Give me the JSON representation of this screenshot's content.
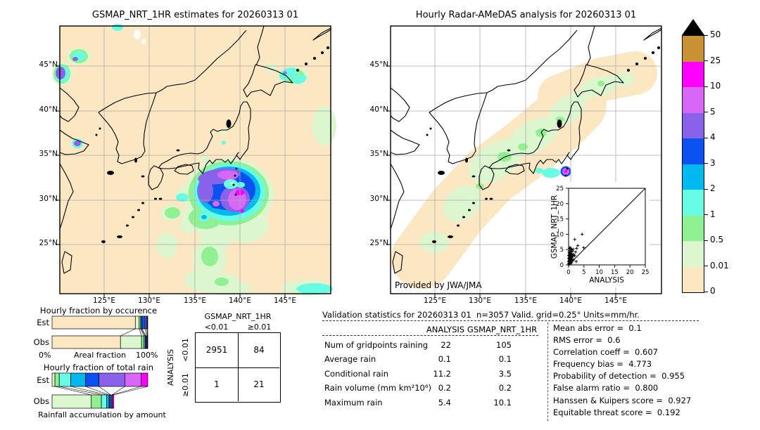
{
  "colorbar": {
    "units": "mm/hr",
    "tick_labels": [
      "50",
      "25",
      "10",
      "5",
      "4",
      "3",
      "2",
      "1",
      "0.5",
      "0.01",
      "0"
    ],
    "bands_top_to_bottom": [
      "#ca9234",
      "#fd00fd",
      "#d867f8",
      "#8a62ea",
      "#0b50f0",
      "#00b9ee",
      "#69fce4",
      "#90f193",
      "#dcf6cf",
      "#fbe7c2"
    ],
    "overflow_color": "#000000"
  },
  "chart_data": [
    {
      "type": "heatmap",
      "name": "gsmap-estimates-map",
      "title": "GSMAP_NRT_1HR estimates for 20260313 01",
      "units": "mm/hr",
      "lon_range": [
        120,
        150
      ],
      "lat_range": [
        20,
        50
      ],
      "lon_ticks": [
        "125°E",
        "130°E",
        "135°E",
        "140°E",
        "145°E"
      ],
      "lat_ticks": [
        "45°N",
        "40°N",
        "35°N",
        "30°N",
        "25°N"
      ],
      "description": "Satellite rain estimates over Japan region; intense system (>10 mm/hr core) southeast of Honshu near 139-141E 29-32N, small cells over Yellow Sea, NE China and east of Hokkaido, light rain patches to the south."
    },
    {
      "type": "heatmap",
      "name": "radar-amedas-map",
      "title": "Hourly Radar-AMeDAS analysis for 20260313 01",
      "units": "mm/hr",
      "credit": "Provided by JWA/JMA",
      "lon_range": [
        120,
        150
      ],
      "lat_range": [
        20,
        50
      ],
      "lon_ticks": [
        "125°E",
        "130°E",
        "135°E",
        "140°E",
        "145°E"
      ],
      "lat_ticks": [
        "45°N",
        "40°N",
        "35°N",
        "30°N",
        "25°N"
      ],
      "description": "Radar coverage swath (tan) along the Japanese archipelago with light rain (<1 mm/hr, green) over western/central Japan and one small intense cell (~5 mm/hr) south of central Honshu near 138E 33N."
    },
    {
      "type": "bar",
      "name": "hourly-fraction-by-occurrence",
      "title": "Hourly fraction by occurence",
      "orientation": "horizontal",
      "stacked": true,
      "categories": [
        "Est",
        "Obs"
      ],
      "xlabel": "Areal fraction",
      "x_min_label": "0%",
      "x_max_label": "100%",
      "series": [
        {
          "level": "0-0.01",
          "color": "#fbe7c2",
          "values": [
            87.0,
            71.5
          ]
        },
        {
          "level": "0.01-0.5",
          "color": "#dcf6cf",
          "values": [
            4.0,
            22.0
          ]
        },
        {
          "level": "0.5-1",
          "color": "#90f193",
          "values": [
            1.5,
            2.5
          ]
        },
        {
          "level": "1-2",
          "color": "#69fce4",
          "values": [
            0.8,
            1.2
          ]
        },
        {
          "level": "2-3",
          "color": "#00b9ee",
          "values": [
            0.7,
            0.6
          ]
        },
        {
          "level": "3-4",
          "color": "#0b50f0",
          "values": [
            3.2,
            1.0
          ]
        },
        {
          "level": "4-5",
          "color": "#8a62ea",
          "values": [
            1.8,
            0.7
          ]
        },
        {
          "level": "5-10",
          "color": "#d867f8",
          "values": [
            0.7,
            0.3
          ]
        },
        {
          "level": "10-25",
          "color": "#fd00fd",
          "values": [
            0.3,
            0.2
          ]
        }
      ]
    },
    {
      "type": "bar",
      "name": "hourly-fraction-of-total-rain",
      "title": "Hourly fraction of total rain",
      "orientation": "horizontal",
      "stacked": true,
      "categories": [
        "Est",
        "Obs"
      ],
      "xlabel": "Rainfall accumulation by amount",
      "series": [
        {
          "level": "0.01-0.5",
          "color": "#dcf6cf",
          "values": [
            3.0,
            41.0
          ]
        },
        {
          "level": "0.5-1",
          "color": "#90f193",
          "values": [
            4.5,
            10.5
          ]
        },
        {
          "level": "1-2",
          "color": "#69fce4",
          "values": [
            12.0,
            5.5
          ]
        },
        {
          "level": "2-3",
          "color": "#00b9ee",
          "values": [
            15.5,
            2.5
          ]
        },
        {
          "level": "3-4",
          "color": "#0b50f0",
          "values": [
            14.0,
            1.5
          ]
        },
        {
          "level": "4-5",
          "color": "#8a62ea",
          "values": [
            27.0,
            1.5
          ]
        },
        {
          "level": "5-10",
          "color": "#d867f8",
          "values": [
            17.0,
            0.5
          ]
        },
        {
          "level": "10-25",
          "color": "#fd00fd",
          "values": [
            7.0,
            1.5
          ]
        }
      ]
    },
    {
      "type": "table",
      "name": "contingency-table",
      "col_group": "GSMAP_NRT_1HR",
      "row_group": "ANALYSIS",
      "col_labels": [
        "<0.01",
        "≥0.01"
      ],
      "row_labels": [
        "<0.01",
        "≥0.01"
      ],
      "values": [
        [
          "2951",
          "84"
        ],
        [
          "1",
          "21"
        ]
      ]
    },
    {
      "type": "table",
      "name": "validation-stats",
      "title": "Validation statistics for 20260313 01  n=3057 Valid. grid=0.25° Units=mm/hr.",
      "columns": [
        "ANALYSIS",
        "GSMAP_NRT_1HR"
      ],
      "rows": [
        [
          "Num of gridpoints raining",
          "22",
          "105"
        ],
        [
          "Average rain",
          "0.1",
          "0.1"
        ],
        [
          "Conditional rain",
          "11.2",
          "3.5"
        ],
        [
          "Rain volume (mm km²10⁶)",
          "0.2",
          "0.2"
        ],
        [
          "Maximum rain",
          "5.4",
          "10.1"
        ]
      ]
    },
    {
      "type": "table",
      "name": "skill-scores",
      "rows": [
        [
          "Mean abs error",
          "0.1"
        ],
        [
          "RMS error",
          "0.6"
        ],
        [
          "Correlation coeff",
          "0.607"
        ],
        [
          "Frequency bias",
          "4.773"
        ],
        [
          "Probability of detection",
          "0.955"
        ],
        [
          "False alarm ratio",
          "0.800"
        ],
        [
          "Hanssen & Kuipers score",
          "0.927"
        ],
        [
          "Equitable threat score",
          "0.192"
        ]
      ]
    },
    {
      "type": "scatter",
      "name": "gsmap-vs-analysis-inset",
      "xlabel": "ANALYSIS",
      "ylabel": "GSMAP_NRT_1HR",
      "xlim": [
        0,
        25
      ],
      "ylim": [
        0,
        25
      ],
      "ticks": [
        0,
        5,
        10,
        15,
        20,
        25
      ],
      "identity_line": true,
      "marker": "+",
      "points": [
        [
          0.1,
          0.1
        ],
        [
          0.1,
          0.6
        ],
        [
          0.1,
          1.3
        ],
        [
          0.1,
          2.2
        ],
        [
          0.1,
          3.1
        ],
        [
          0.2,
          0.3
        ],
        [
          0.2,
          1.0
        ],
        [
          0.2,
          1.9
        ],
        [
          0.2,
          2.8
        ],
        [
          0.2,
          4.1
        ],
        [
          0.3,
          0.5
        ],
        [
          0.3,
          1.5
        ],
        [
          0.3,
          2.3
        ],
        [
          0.3,
          3.5
        ],
        [
          0.3,
          5.4
        ],
        [
          0.4,
          0.8
        ],
        [
          0.4,
          2.0
        ],
        [
          0.4,
          3.1
        ],
        [
          0.4,
          4.6
        ],
        [
          0.5,
          1.2
        ],
        [
          0.5,
          2.5
        ],
        [
          0.5,
          3.9
        ],
        [
          0.5,
          5.7
        ],
        [
          0.6,
          0.4
        ],
        [
          0.6,
          1.7
        ],
        [
          0.6,
          3.0
        ],
        [
          0.7,
          2.1
        ],
        [
          0.7,
          4.3
        ],
        [
          0.8,
          1.1
        ],
        [
          0.8,
          3.3
        ],
        [
          0.8,
          5.2
        ],
        [
          0.9,
          2.6
        ],
        [
          1.0,
          0.7
        ],
        [
          1.0,
          1.8
        ],
        [
          1.0,
          3.7
        ],
        [
          1.0,
          5.0
        ],
        [
          1.1,
          2.3
        ],
        [
          1.2,
          1.4
        ],
        [
          1.2,
          3.2
        ],
        [
          1.3,
          4.5
        ],
        [
          1.4,
          2.8
        ],
        [
          1.5,
          5.1
        ],
        [
          1.6,
          1.6
        ],
        [
          1.7,
          3.4
        ],
        [
          2.0,
          3.0
        ],
        [
          2.0,
          8.3
        ],
        [
          2.3,
          4.2
        ],
        [
          2.5,
          1.1
        ],
        [
          2.6,
          5.4
        ],
        [
          3.0,
          6.3
        ],
        [
          4.4,
          10.0
        ],
        [
          4.9,
          5.6
        ]
      ]
    }
  ]
}
